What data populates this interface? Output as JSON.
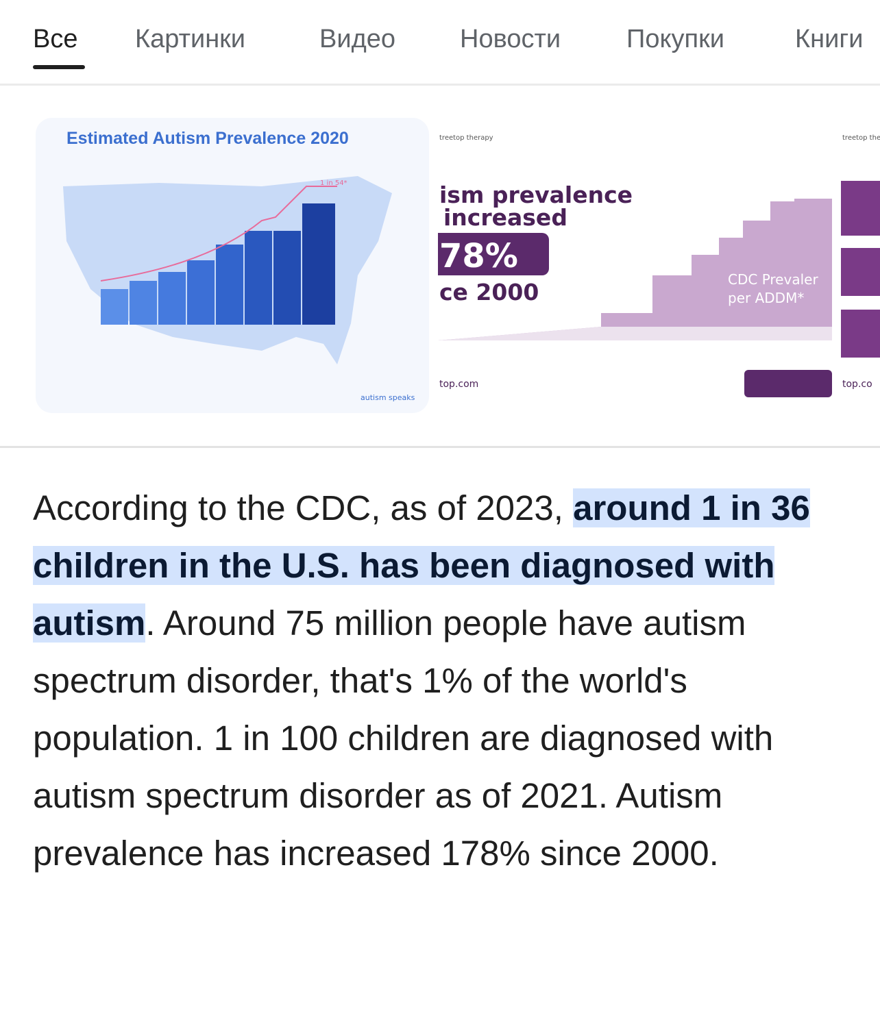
{
  "tabs": [
    "Все",
    "Картинки",
    "Видео",
    "Новости",
    "Покупки",
    "Книги"
  ],
  "images": [
    {
      "title": "Estimated Autism Prevalence 2020",
      "annotation": "1 in 54*",
      "source": "autism speaks"
    },
    {
      "brand": "treetop therapy",
      "headline_1": "ism prevalence",
      "headline_2": "increased",
      "badge": "78%",
      "headline_3": "ce 2000",
      "source": "top.com",
      "caption_1": "CDC Prevaler",
      "caption_2": "per ADDM*"
    },
    {
      "brand": "treetop therapy",
      "source": "top.co"
    }
  ],
  "answer": {
    "before": "According to the CDC, as of 2023, ",
    "highlight": "around 1 in 36 children in the U.S. has been diagnosed with autism",
    "after": ". Around 75 million people have autism spectrum disorder, that's 1% of the world's population. 1 in 100 children are diagnosed with autism spectrum disorder as of 2021. Autism prevalence has increased 178% since 2000."
  }
}
